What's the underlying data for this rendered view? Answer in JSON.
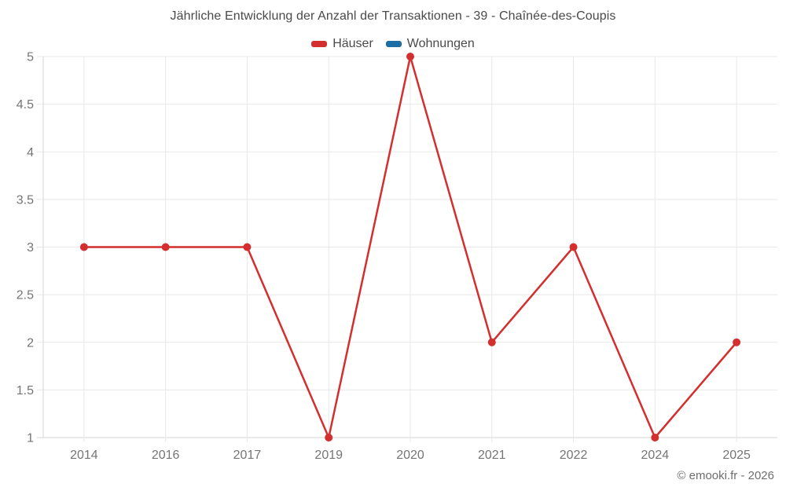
{
  "page": {
    "title": "Jährliche Entwicklung der Anzahl der Transaktionen - 39 - Chaînée-des-Coupis",
    "footer": "© emooki.fr - 2026"
  },
  "legend": {
    "items": [
      {
        "label": "Häuser",
        "color": "#d32f2f"
      },
      {
        "label": "Wohnungen",
        "color": "#1c6ea4"
      }
    ]
  },
  "chart_data": {
    "type": "line",
    "title": "Jährliche Entwicklung der Anzahl der Transaktionen - 39 - Chaînée-des-Coupis",
    "categories": [
      "2014",
      "2016",
      "2017",
      "2019",
      "2020",
      "2021",
      "2022",
      "2024",
      "2025"
    ],
    "series": [
      {
        "name": "Häuser",
        "color": "#d32f2f",
        "visible": true,
        "values": [
          3,
          3,
          3,
          1,
          5,
          2,
          3,
          1,
          2
        ]
      },
      {
        "name": "Wohnungen",
        "color": "#1c6ea4",
        "visible": false,
        "values": []
      }
    ],
    "xlabel": "",
    "ylabel": "",
    "ylim": [
      1,
      5
    ],
    "yticks": [
      1,
      1.5,
      2,
      2.5,
      3,
      3.5,
      4,
      4.5,
      5
    ],
    "grid": true,
    "legend_position": "top",
    "marker": "circle",
    "annotation": "© emooki.fr - 2026"
  },
  "style": {
    "grid_color": "#e8e8e8",
    "axis_color": "#d6d6d6",
    "tick_label_color": "#757575",
    "title_color": "#4a4a4a",
    "footer_color": "#6e6e6e",
    "background": "#ffffff"
  }
}
